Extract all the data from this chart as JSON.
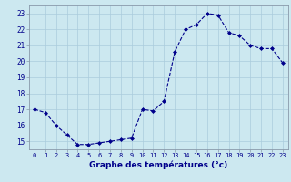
{
  "hours": [
    0,
    1,
    2,
    3,
    4,
    5,
    6,
    7,
    8,
    9,
    10,
    11,
    12,
    13,
    14,
    15,
    16,
    17,
    18,
    19,
    20,
    21,
    22,
    23
  ],
  "temps": [
    17.0,
    16.8,
    16.0,
    15.4,
    14.8,
    14.8,
    14.9,
    15.0,
    15.1,
    15.2,
    17.0,
    16.9,
    17.5,
    20.6,
    22.0,
    22.3,
    23.0,
    22.9,
    21.8,
    21.6,
    21.0,
    20.8,
    20.8,
    19.9
  ],
  "ylim": [
    14.5,
    23.5
  ],
  "yticks": [
    15,
    16,
    17,
    18,
    19,
    20,
    21,
    22,
    23
  ],
  "xticks": [
    0,
    1,
    2,
    3,
    4,
    5,
    6,
    7,
    8,
    9,
    10,
    11,
    12,
    13,
    14,
    15,
    16,
    17,
    18,
    19,
    20,
    21,
    22,
    23
  ],
  "line_color": "#00008b",
  "marker_color": "#00008b",
  "bg_color": "#cce8f0",
  "grid_color": "#aaccdd",
  "xlabel": "Graphe des températures (°c)",
  "xlabel_color": "#00008b",
  "tick_label_color": "#00008b",
  "border_color": "#8899aa"
}
